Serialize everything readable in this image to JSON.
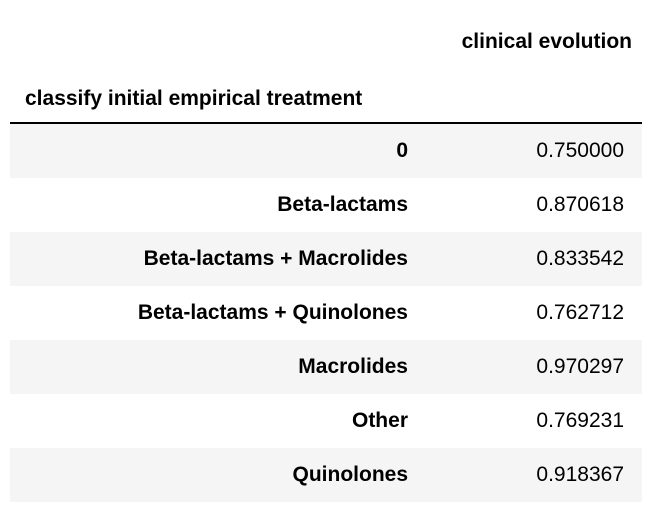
{
  "table": {
    "column_header": "clinical evolution",
    "index_header": "classify initial empirical treatment",
    "rows": [
      {
        "label": "0",
        "value": "0.750000"
      },
      {
        "label": "Beta-lactams",
        "value": "0.870618"
      },
      {
        "label": "Beta-lactams + Macrolides",
        "value": "0.833542"
      },
      {
        "label": "Beta-lactams + Quinolones",
        "value": "0.762712"
      },
      {
        "label": "Macrolides",
        "value": "0.970297"
      },
      {
        "label": "Other",
        "value": "0.769231"
      },
      {
        "label": "Quinolones",
        "value": "0.918367"
      }
    ]
  },
  "colors": {
    "stripe": "#f5f5f5",
    "divider": "#000000"
  }
}
